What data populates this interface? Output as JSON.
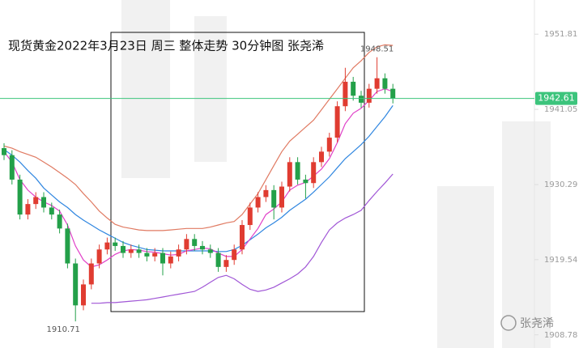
{
  "chart_data": {
    "type": "candlestick",
    "title": "现货黄金2022年3月23日 周三 整体走势 30分钟图  张尧浠",
    "open": [
      1935.5,
      1934.5,
      1931,
      1926,
      1927.5,
      1928.5,
      1927,
      1926,
      1924,
      1919,
      1913,
      1916,
      1919,
      1921,
      1922,
      1921.5,
      1920.5,
      1921,
      1920.5,
      1920,
      1920.5,
      1919,
      1920,
      1921,
      1922.5,
      1921.5,
      1921,
      1920.5,
      1918.5,
      1919.5,
      1921,
      1924.5,
      1927,
      1928.5,
      1929.5,
      1927,
      1930,
      1933.5,
      1931,
      1930.5,
      1933.5,
      1935,
      1937,
      1941.5,
      1945,
      1943,
      1942,
      1944,
      1945.5,
      1944
    ],
    "high": [
      1936.2,
      1935.2,
      1931.7,
      1928.2,
      1929.2,
      1929.2,
      1927.7,
      1926.7,
      1924.7,
      1919.7,
      1916.7,
      1919.7,
      1921.7,
      1922.7,
      1922.7,
      1922.2,
      1921.7,
      1921.7,
      1921.2,
      1921.2,
      1921.2,
      1920.7,
      1921.7,
      1923.2,
      1923.2,
      1922.2,
      1921.7,
      1921.2,
      1920.2,
      1921.7,
      1925.2,
      1927.7,
      1929.2,
      1930.2,
      1930.2,
      1930.7,
      1934.2,
      1934.2,
      1931.7,
      1934.2,
      1935.7,
      1937.7,
      1942.2,
      1947,
      1945.7,
      1943.7,
      1944.7,
      1948.51,
      1946.2,
      1944.7
    ],
    "low": [
      1933.8,
      1930.3,
      1925.3,
      1925.3,
      1926.8,
      1926.3,
      1925.3,
      1923.3,
      1918.3,
      1910.71,
      1912.3,
      1915.3,
      1918.3,
      1920.3,
      1920.8,
      1919.8,
      1919.8,
      1919.8,
      1919.3,
      1919.3,
      1917.3,
      1918.3,
      1919.3,
      1920.3,
      1920.8,
      1920.3,
      1919.8,
      1917.8,
      1917.8,
      1918.8,
      1920.3,
      1923.8,
      1926.3,
      1927.8,
      1925.3,
      1926.3,
      1929.3,
      1930.3,
      1928.3,
      1929.8,
      1932.8,
      1934.3,
      1936.3,
      1940.8,
      1942.3,
      1941.3,
      1941.3,
      1943.3,
      1943.3,
      1941.9
    ],
    "close": [
      1934.5,
      1931,
      1926,
      1927.5,
      1928.5,
      1927,
      1926,
      1924,
      1919,
      1913,
      1916,
      1919,
      1921,
      1922,
      1921.5,
      1920.5,
      1921,
      1920.5,
      1920,
      1920.5,
      1919,
      1920,
      1921,
      1922.5,
      1921.5,
      1921,
      1920.5,
      1918.5,
      1919.5,
      1921,
      1924.5,
      1927,
      1928.5,
      1929.5,
      1927,
      1930,
      1933.5,
      1931,
      1930.5,
      1933.5,
      1935,
      1937,
      1941.5,
      1945,
      1943,
      1942,
      1944,
      1945.5,
      1944,
      1942.61
    ],
    "up_color": "#e03c31",
    "down_color": "#23a049",
    "lines": [
      {
        "color": "#e07a62",
        "values": [
          1935.8,
          1935.5,
          1935,
          1934.6,
          1934.2,
          1933.5,
          1932.8,
          1932,
          1931.2,
          1930.3,
          1929,
          1927.8,
          1926.5,
          1925.5,
          1924.6,
          1924.2,
          1924,
          1923.8,
          1923.7,
          1923.7,
          1923.7,
          1923.8,
          1923.9,
          1924,
          1924,
          1924,
          1924.2,
          1924.5,
          1924.8,
          1925,
          1926,
          1927.5,
          1929,
          1931,
          1933,
          1935,
          1936.5,
          1937.5,
          1938.5,
          1939.5,
          1941,
          1942.5,
          1944,
          1945.5,
          1947,
          1948,
          1949.2,
          1950,
          1950.3,
          1950.2
        ]
      },
      {
        "color": "#a056d6",
        "values": [
          null,
          null,
          null,
          null,
          null,
          null,
          null,
          null,
          null,
          null,
          null,
          1913.3,
          1913.3,
          1913.4,
          1913.4,
          1913.5,
          1913.6,
          1913.7,
          1913.8,
          1914,
          1914.2,
          1914.4,
          1914.6,
          1914.8,
          1915,
          1915.6,
          1916.3,
          1917,
          1917.3,
          1916.8,
          1916,
          1915.3,
          1915,
          1915.2,
          1915.6,
          1916.2,
          1916.8,
          1917.5,
          1918.5,
          1920,
          1922,
          1923.8,
          1924.8,
          1925.5,
          1926,
          1926.6,
          1928,
          1929.3,
          1930.5,
          1931.8
        ]
      },
      {
        "color": "#2f86e0",
        "values": [
          1935.3,
          1934.5,
          1933.5,
          1932.3,
          1931.2,
          1929.8,
          1928.8,
          1927.8,
          1927,
          1926,
          1925.2,
          1924.5,
          1923.8,
          1923.2,
          1922.6,
          1922,
          1921.6,
          1921.3,
          1921,
          1920.9,
          1920.8,
          1920.8,
          1920.8,
          1920.8,
          1920.8,
          1920.8,
          1920.8,
          1920.7,
          1920.7,
          1921,
          1921.6,
          1922.4,
          1923.2,
          1924.1,
          1924.8,
          1925.6,
          1926.6,
          1927.4,
          1928.2,
          1929.2,
          1930.3,
          1931.4,
          1932.7,
          1934,
          1935,
          1936,
          1937.2,
          1938.6,
          1940,
          1941.6
        ]
      },
      {
        "color": "#e040c8",
        "values": [
          1935,
          1933.5,
          1931,
          1929.5,
          1928.5,
          1927.8,
          1927.3,
          1926.5,
          1924.5,
          1921.5,
          1919.5,
          1918.5,
          1918.8,
          1919.5,
          1920.3,
          1920.8,
          1921,
          1920.9,
          1920.7,
          1920.6,
          1920.4,
          1920.2,
          1920.3,
          1920.8,
          1921,
          1921.2,
          1921.1,
          1920.5,
          1920,
          1920,
          1921,
          1922.5,
          1924,
          1926,
          1926.8,
          1927.8,
          1929.5,
          1930.2,
          1930.6,
          1931.5,
          1932.5,
          1934,
          1936.3,
          1939,
          1940.5,
          1941.2,
          1942.3,
          1943.6,
          1944,
          1943.6
        ]
      }
    ],
    "ylim": [
      1906.9,
      1956.7
    ],
    "yticks": [
      1951.81,
      1941.05,
      1930.29,
      1919.54,
      1908.78
    ],
    "last_price": 1942.61,
    "last_price_color": "#3cc47c",
    "high_label": 1948.51,
    "low_label": 1910.71
  },
  "watermark": "张尧浠"
}
